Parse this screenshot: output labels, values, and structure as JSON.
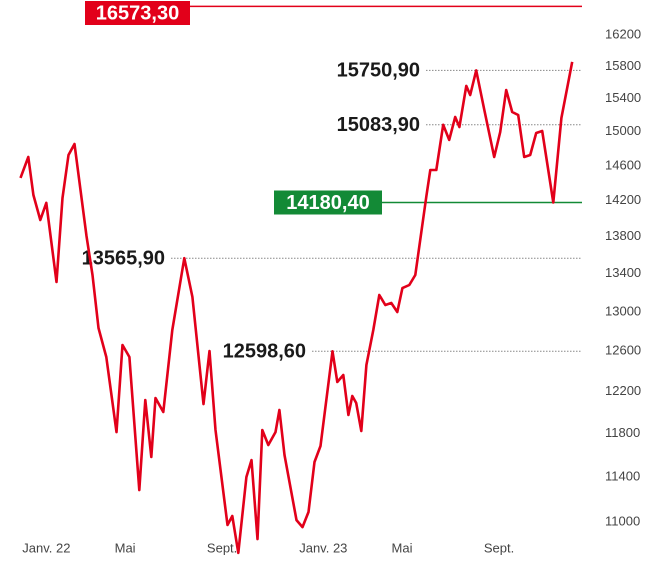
{
  "chart_data": {
    "type": "line",
    "log_scale": true,
    "color": "#e2001a",
    "xlim": [
      -0.1,
      24.6
    ],
    "xticks": [
      {
        "value": 0,
        "label": "Janv. 22"
      },
      {
        "value": 4,
        "label": "Mai"
      },
      {
        "value": 8,
        "label": "Sept."
      },
      {
        "value": 12,
        "label": "Janv. 23"
      },
      {
        "value": 16,
        "label": "Mai"
      },
      {
        "value": 20,
        "label": "Sept."
      }
    ],
    "ylim": [
      10800,
      16600
    ],
    "yticks": [
      11000,
      11400,
      11800,
      12200,
      12600,
      13000,
      13400,
      13800,
      14200,
      14600,
      15000,
      15400,
      15800,
      16200
    ],
    "x": [
      -0.08,
      0.26,
      0.48,
      0.78,
      1.04,
      1.48,
      1.74,
      2.0,
      2.26,
      2.78,
      3.04,
      3.3,
      3.64,
      4.08,
      4.34,
      4.64,
      5.07,
      5.33,
      5.59,
      5.77,
      6.11,
      6.5,
      7.02,
      7.37,
      7.85,
      8.11,
      8.37,
      8.89,
      9.1,
      9.36,
      9.71,
      9.93,
      10.19,
      10.4,
      10.66,
      10.97,
      11.14,
      11.36,
      11.88,
      12.14,
      12.4,
      12.66,
      12.92,
      13.44,
      13.65,
      13.91,
      14.13,
      14.3,
      14.47,
      14.69,
      14.91,
      15.21,
      15.47,
      15.73,
      15.99,
      16.25,
      16.47,
      16.77,
      17.03,
      17.51,
      17.68,
      17.94,
      18.24,
      18.5,
      18.76,
      18.94,
      19.24,
      19.41,
      19.67,
      20.02,
      20.45,
      20.71,
      20.97,
      21.23,
      21.49,
      21.75,
      22.01,
      22.27,
      22.53,
      23.01,
      23.36,
      23.83
    ],
    "values": [
      14460,
      14703,
      14265,
      13985,
      14176,
      13312,
      14232,
      14726,
      14855,
      13807,
      13386,
      12834,
      12542,
      11815,
      12662,
      12542,
      11283,
      12120,
      11583,
      12140,
      12005,
      12814,
      13565.9,
      13155,
      12081,
      12602,
      11835,
      10974,
      11053,
      10733,
      11401,
      11555,
      10852,
      11835,
      11694,
      11815,
      12024,
      11602,
      11017,
      10956,
      11088,
      11537,
      11685,
      12598.6,
      12295,
      12364,
      11977,
      12159,
      12091,
      11825,
      12462,
      12814,
      13175,
      13071,
      13092,
      12998,
      13248,
      13280,
      13386,
      14254,
      14552,
      14552,
      15083.9,
      14904,
      15178,
      15058,
      15557,
      15445,
      15750.9,
      15263,
      14703,
      14997,
      15507,
      15238,
      15202,
      14703,
      14726,
      14986,
      15010,
      14180.4,
      15166,
      15857
    ],
    "annotations": [
      {
        "value": 16573.3,
        "label": "16573,30",
        "color": "#e2001a",
        "style": "box"
      },
      {
        "value": 13565.9,
        "label": "13565,90",
        "color": "#888888",
        "style": "dotted"
      },
      {
        "value": 12598.6,
        "label": "12598,60",
        "color": "#888888",
        "style": "dotted"
      },
      {
        "value": 15750.9,
        "label": "15750,90",
        "color": "#888888",
        "style": "dotted"
      },
      {
        "value": 15083.9,
        "label": "15083,90",
        "color": "#888888",
        "style": "dotted"
      },
      {
        "value": 14180.4,
        "label": "14180,40",
        "color": "#138a36",
        "style": "box"
      }
    ]
  }
}
